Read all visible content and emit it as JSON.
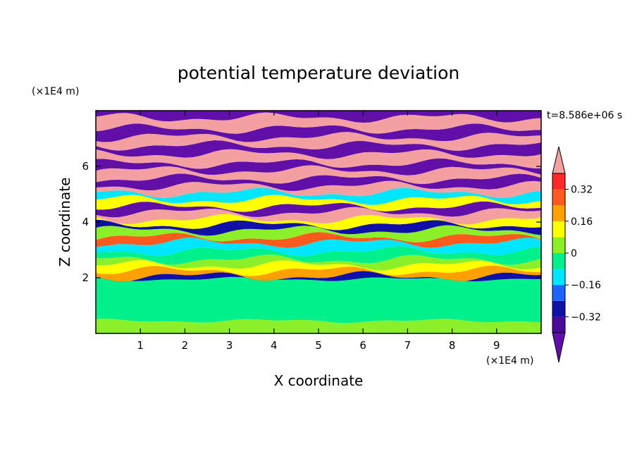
{
  "chart_data": {
    "type": "heatmap",
    "title": "potential temperature deviation",
    "xlabel": "X coordinate",
    "ylabel": "Z coordinate",
    "x_unit": "(×1E4 m)",
    "y_unit": "(×1E4 m)",
    "time_label": "t=8.586e+06 s",
    "xlim": [
      0,
      10
    ],
    "ylim": [
      0,
      8
    ],
    "x_ticks": [
      1,
      2,
      3,
      4,
      5,
      6,
      7,
      8,
      9
    ],
    "y_ticks": [
      2,
      4,
      6
    ],
    "x_tick_labels": [
      "1",
      "2",
      "3",
      "4",
      "5",
      "6",
      "7",
      "8",
      "9"
    ],
    "y_tick_labels": [
      "2",
      "4",
      "6"
    ],
    "colorbar": {
      "levels": [
        -0.4,
        -0.32,
        -0.24,
        -0.16,
        -0.08,
        0,
        0.08,
        0.16,
        0.24,
        0.32,
        0.4
      ],
      "tick_values": [
        0.32,
        0.16,
        0,
        -0.16,
        -0.32
      ],
      "tick_labels": [
        "0.32",
        "0.16",
        "0",
        "−0.16",
        "−0.32"
      ],
      "colors": [
        "#4d0a9a",
        "#1010a8",
        "#1e64ff",
        "#00e6ff",
        "#00f08c",
        "#8cf028",
        "#ffff00",
        "#ffa000",
        "#ff5a1e",
        "#ff2828"
      ],
      "over_color": "#f5a0a0",
      "under_color": "#6010a8"
    },
    "bands": [
      {
        "z0": 0.0,
        "z1": 0.45,
        "c": "#8cf028"
      },
      {
        "z0": 0.45,
        "z1": 1.95,
        "c": "#00f08c"
      },
      {
        "z0": 1.95,
        "z1": 2.05,
        "c": "#1010a8"
      },
      {
        "z0": 2.05,
        "z1": 2.25,
        "c": "#ffa000"
      },
      {
        "z0": 2.25,
        "z1": 2.45,
        "c": "#ffff00"
      },
      {
        "z0": 2.45,
        "z1": 2.65,
        "c": "#8cf028"
      },
      {
        "z0": 2.65,
        "z1": 2.95,
        "c": "#00f08c"
      },
      {
        "z0": 2.95,
        "z1": 3.25,
        "c": "#00e6ff"
      },
      {
        "z0": 3.25,
        "z1": 3.45,
        "c": "#ff5a1e"
      },
      {
        "z0": 3.45,
        "z1": 3.7,
        "c": "#8cf028"
      },
      {
        "z0": 3.7,
        "z1": 3.9,
        "c": "#1010a8"
      },
      {
        "z0": 3.9,
        "z1": 4.1,
        "c": "#ffff00"
      },
      {
        "z0": 4.1,
        "z1": 4.35,
        "c": "#f5a0a0"
      },
      {
        "z0": 4.35,
        "z1": 4.55,
        "c": "#6010a8"
      },
      {
        "z0": 4.55,
        "z1": 4.8,
        "c": "#ffff00"
      },
      {
        "z0": 4.8,
        "z1": 5.05,
        "c": "#00e6ff"
      },
      {
        "z0": 5.05,
        "z1": 5.3,
        "c": "#f5a0a0"
      },
      {
        "z0": 5.3,
        "z1": 5.55,
        "c": "#6010a8"
      },
      {
        "z0": 5.55,
        "z1": 5.85,
        "c": "#f5a0a0"
      },
      {
        "z0": 5.85,
        "z1": 6.1,
        "c": "#6010a8"
      },
      {
        "z0": 6.1,
        "z1": 6.45,
        "c": "#f5a0a0"
      },
      {
        "z0": 6.45,
        "z1": 6.75,
        "c": "#6010a8"
      },
      {
        "z0": 6.75,
        "z1": 7.05,
        "c": "#f5a0a0"
      },
      {
        "z0": 7.05,
        "z1": 7.35,
        "c": "#6010a8"
      },
      {
        "z0": 7.35,
        "z1": 7.75,
        "c": "#f5a0a0"
      },
      {
        "z0": 7.75,
        "z1": 8.0,
        "c": "#6010a8"
      }
    ],
    "grid": false
  }
}
